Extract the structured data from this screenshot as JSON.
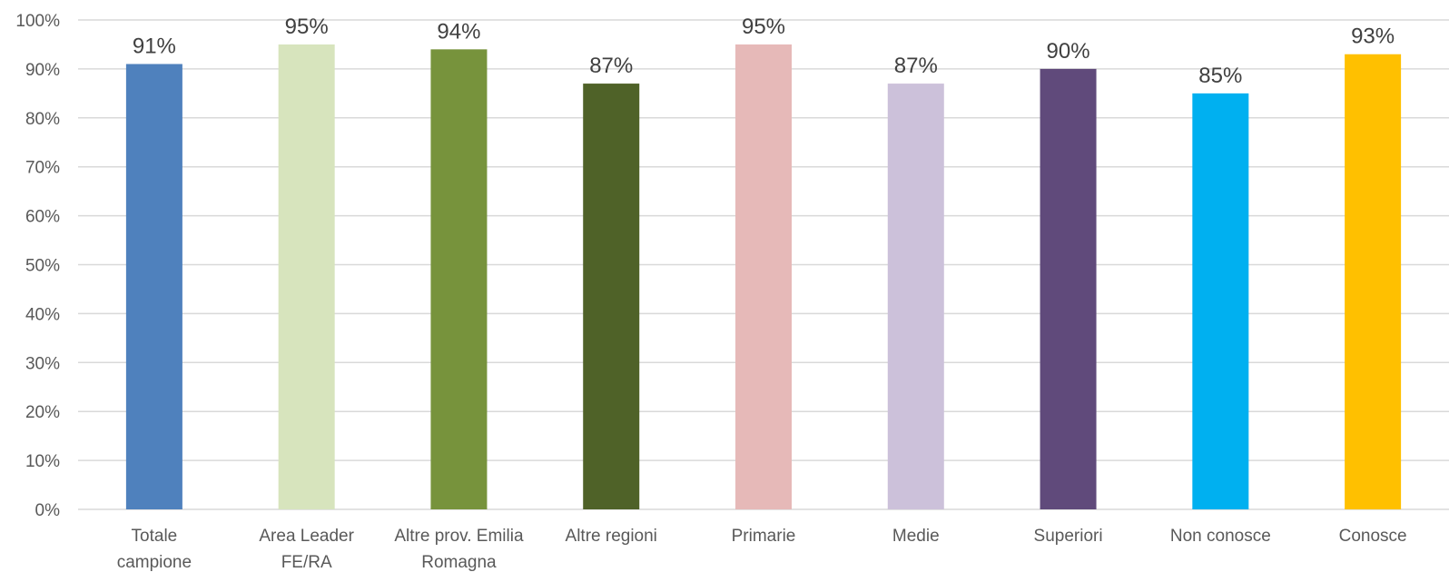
{
  "chart_data": {
    "type": "bar",
    "categories": [
      [
        "Totale",
        "campione"
      ],
      [
        "Area Leader",
        "FE/RA"
      ],
      [
        "Altre prov. Emilia",
        "Romagna"
      ],
      [
        "Altre regioni"
      ],
      [
        "Primarie"
      ],
      [
        "Medie"
      ],
      [
        "Superiori"
      ],
      [
        "Non conosce"
      ],
      [
        "Conosce"
      ]
    ],
    "values": [
      91,
      95,
      94,
      87,
      95,
      87,
      90,
      85,
      93
    ],
    "value_labels": [
      "91%",
      "95%",
      "94%",
      "87%",
      "95%",
      "87%",
      "90%",
      "85%",
      "93%"
    ],
    "colors": [
      "#4f81bd",
      "#d7e4bd",
      "#77933c",
      "#4f6228",
      "#e6b9b8",
      "#ccc1da",
      "#604a7b",
      "#00b0f0",
      "#ffc000"
    ],
    "ylim": [
      0,
      100
    ],
    "yticks": [
      "0%",
      "10%",
      "20%",
      "30%",
      "40%",
      "50%",
      "60%",
      "70%",
      "80%",
      "90%",
      "100%"
    ],
    "grid": true,
    "legend": "none"
  }
}
